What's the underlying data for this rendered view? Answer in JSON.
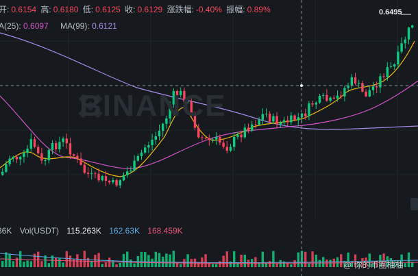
{
  "ohlc": {
    "open_label": "开:",
    "open": "0.6154",
    "high_label": "高:",
    "high": "0.6180",
    "low_label": "低:",
    "low": "0.6125",
    "close_label": "收:",
    "close": "0.6129",
    "change_label": "涨跌幅:",
    "change": "-0.40%",
    "amplitude_label": "振幅:",
    "amplitude": "0.89%"
  },
  "ma": {
    "ma25_label": "A(25):",
    "ma25_value": "0.6097",
    "ma99_label": "MA(99):",
    "ma99_value": "0.6121"
  },
  "volume": {
    "vol_truncated": "36K",
    "vol_label": "Vol(USDT)",
    "vol_value": "115.263K",
    "ma_a": "162.63K",
    "ma_b": "168.459K"
  },
  "price_tag": "0.6495",
  "watermark_text": "BINANCE",
  "footer_watermark": "你的币圈柚柚",
  "colors": {
    "up": "#0ecb81",
    "down": "#f6465d",
    "ma7": "#f0b90b",
    "ma25": "#d054c6",
    "ma99": "#a48be8"
  }
}
